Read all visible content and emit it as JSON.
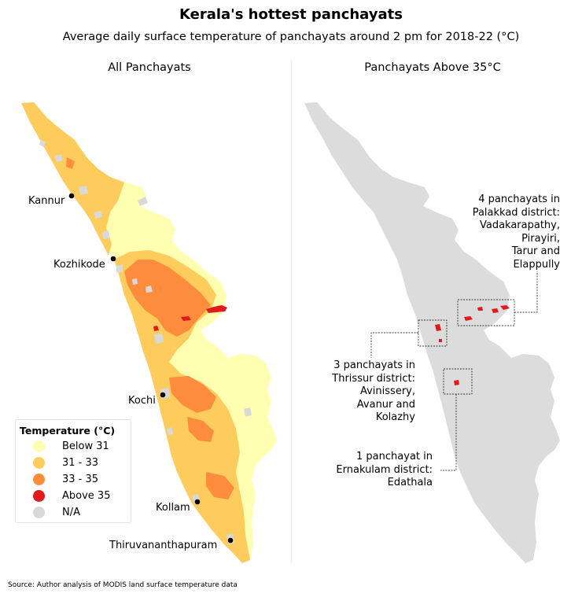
{
  "title": "Kerala's hottest panchayats",
  "subtitle": "Average daily surface temperature of panchayats around 2 pm for 2018-22 (°C)",
  "panels": {
    "left_title": "All Panchayats",
    "right_title": "Panchayats Above 35°C"
  },
  "cities": [
    {
      "name": "Kannur"
    },
    {
      "name": "Kozhikode"
    },
    {
      "name": "Kochi"
    },
    {
      "name": "Kollam"
    },
    {
      "name": "Thiruvananthapuram"
    }
  ],
  "legend": {
    "title": "Temperature (°C)",
    "items": [
      {
        "label": "Below 31",
        "color": "#ffffb2"
      },
      {
        "label": "31 - 33",
        "color": "#fecc5c"
      },
      {
        "label": "33 - 35",
        "color": "#fd8d3c"
      },
      {
        "label": "Above 35",
        "color": "#e31a1c"
      },
      {
        "label": "N/A",
        "color": "#d9d9d9"
      }
    ]
  },
  "annotations": {
    "palakkad": "4 panchayats in\nPalakkad district:\nVadakarapathy,\nPirayiri,\nTarur and\nElappully",
    "thrissur": "3 panchayats in\nThrissur district:\nAvinissery,\nAvanur and\nKolazhy",
    "ernakulam": "1 panchayat in\nErnakulam district:\nEdathala"
  },
  "colors": {
    "below_31": "#ffffb2",
    "c31_33": "#fecc5c",
    "c33_35": "#fd8d3c",
    "above_35": "#e31a1c",
    "na": "#d9d9d9"
  },
  "source": "Source: Author analysis of MODIS land surface temperature data"
}
